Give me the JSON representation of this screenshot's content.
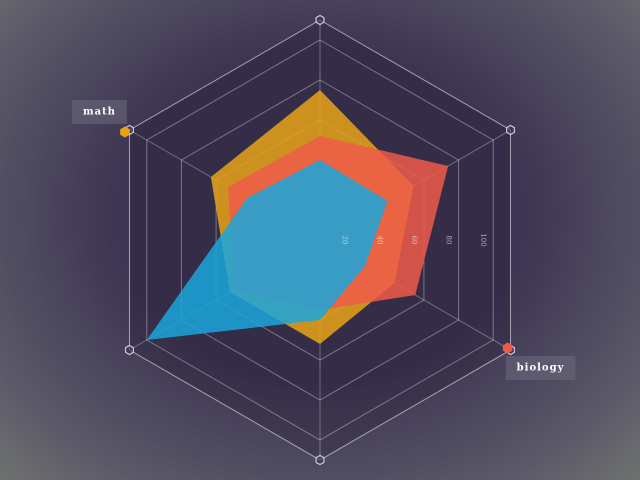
{
  "chart_data": {
    "type": "radar",
    "categories": [
      null,
      null,
      "biology",
      null,
      null,
      "math"
    ],
    "ylim": [
      0,
      110
    ],
    "yticks": [
      20,
      40,
      60,
      80,
      100
    ],
    "grid": true,
    "series": [
      {
        "color": "#e8a317",
        "values": [
          75,
          54,
          43,
          52,
          52,
          63
        ]
      },
      {
        "color": "#ee5a4a",
        "values": [
          52,
          74,
          55,
          35,
          50,
          53
        ]
      },
      {
        "color": "#1aa6dc",
        "values": [
          40,
          39,
          26,
          40,
          100,
          42
        ]
      }
    ]
  }
}
